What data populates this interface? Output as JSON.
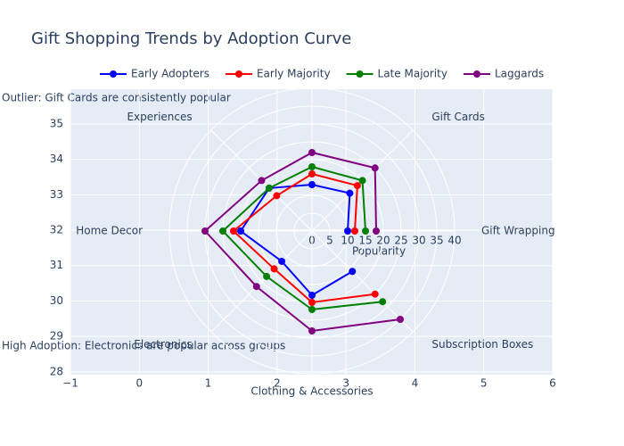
{
  "chart_data": {
    "type": "radar",
    "title": "Gift Shopping Trends by Adoption Curve",
    "categories": [
      "Gift Wrapping",
      "Gift Cards",
      null,
      "Experiences",
      "Home Decor",
      "Electronics",
      "Clothing & Accessories",
      "Subscription Boxes"
    ],
    "series": [
      {
        "name": "Early Adopters",
        "color": "#0000ff",
        "values": [
          10,
          15,
          13,
          17,
          20,
          12,
          18,
          16
        ]
      },
      {
        "name": "Early Majority",
        "color": "#ff0000",
        "values": [
          12,
          18,
          16,
          14,
          22,
          15,
          20,
          25
        ]
      },
      {
        "name": "Late Majority",
        "color": "#008000",
        "values": [
          15,
          20,
          18,
          17,
          25,
          18,
          22,
          28
        ]
      },
      {
        "name": "Laggards",
        "color": "#800080",
        "values": [
          18,
          25,
          22,
          20,
          30,
          22,
          28,
          35
        ]
      }
    ],
    "rlim": [
      0,
      40
    ],
    "rticks": [
      0,
      5,
      10,
      15,
      20,
      25,
      30,
      35,
      40
    ],
    "raxis_title": "Popularity",
    "xlim": [
      -1,
      6
    ],
    "xticks": [
      {
        "value": -1,
        "label": "−1"
      },
      0,
      1,
      2,
      3,
      4,
      5,
      6
    ],
    "ylim": [
      27.92,
      35.98
    ],
    "yticks": [
      28,
      29,
      30,
      31,
      32,
      33,
      34,
      35
    ],
    "annotations": [
      "Outlier: Gift Cards are consistently popular",
      "High Adoption: Electronics are popular across groups"
    ],
    "grid": true,
    "legend": "top"
  }
}
